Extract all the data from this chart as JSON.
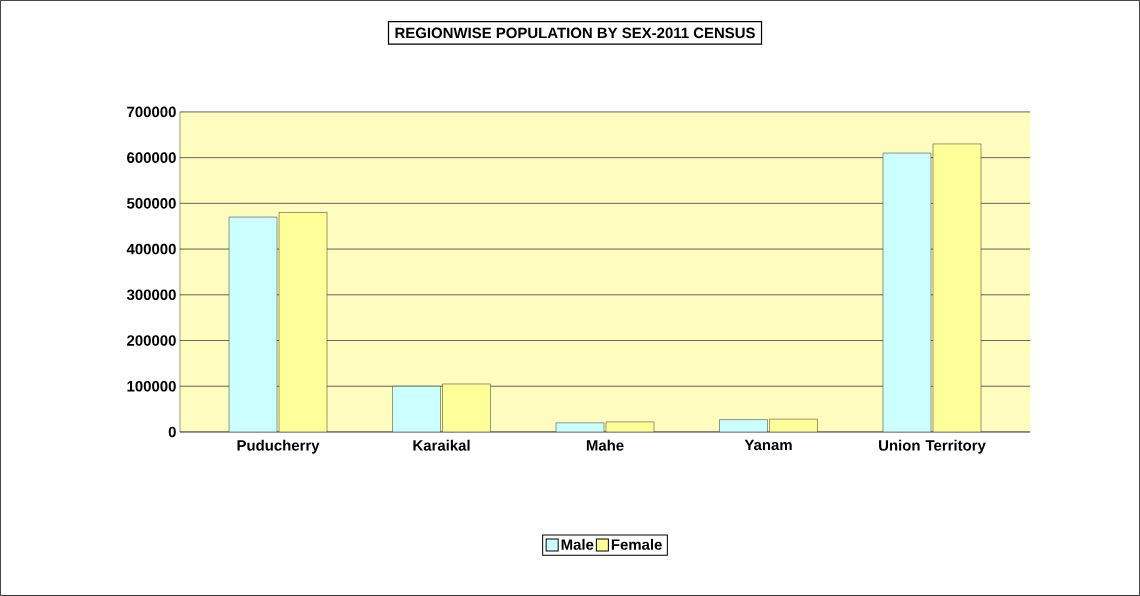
{
  "chart_data": {
    "type": "bar",
    "title": "REGIONWISE POPULATION BY SEX-2011 CENSUS",
    "categories": [
      "Puducherry",
      "Karaikal",
      "Mahe",
      "Yanam",
      "Union Territory"
    ],
    "series": [
      {
        "name": "Male",
        "color": "#ccffff",
        "values": [
          470000,
          100000,
          20000,
          27000,
          610000
        ]
      },
      {
        "name": "Female",
        "color": "#ffff99",
        "values": [
          480000,
          105000,
          22000,
          28000,
          630000
        ]
      }
    ],
    "ylim": [
      0,
      700000
    ],
    "yticks": [
      0,
      100000,
      200000,
      300000,
      400000,
      500000,
      600000,
      700000
    ],
    "grid": "y",
    "legend": "bottom"
  }
}
